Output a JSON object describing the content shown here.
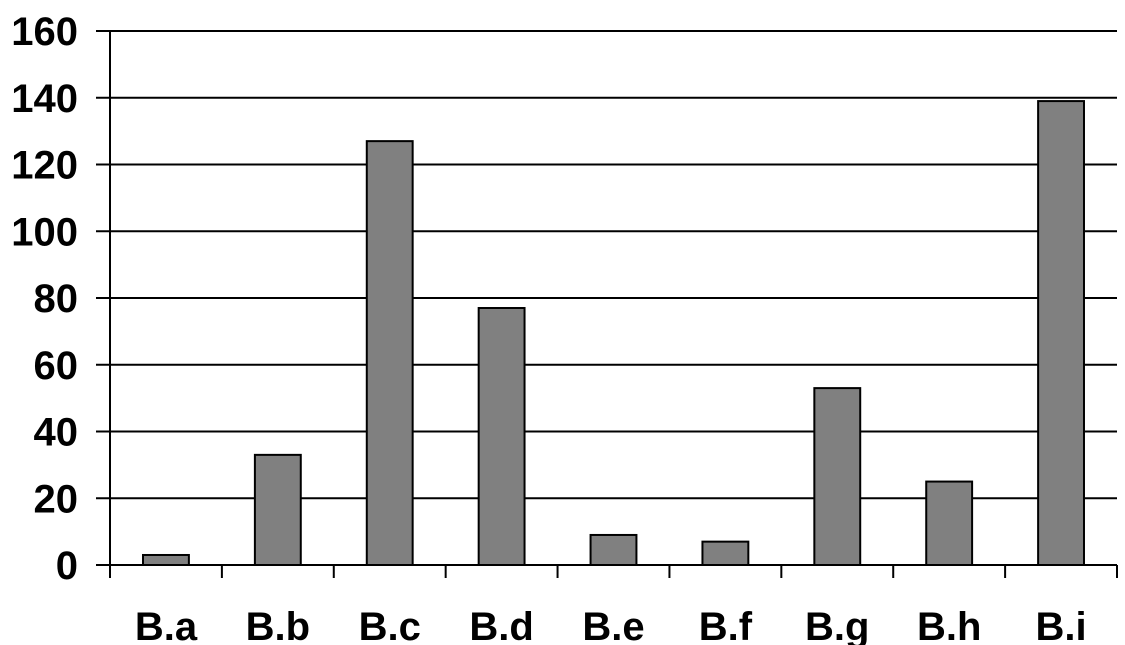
{
  "chart_data": {
    "type": "bar",
    "title": "",
    "xlabel": "",
    "ylabel": "",
    "categories": [
      "B.a",
      "B.b",
      "B.c",
      "B.d",
      "B.e",
      "B.f",
      "B.g",
      "B.h",
      "B.i"
    ],
    "values": [
      3,
      33,
      127,
      77,
      9,
      7,
      53,
      25,
      139
    ],
    "ylim": [
      0,
      160
    ],
    "yticks": [
      0,
      20,
      40,
      60,
      80,
      100,
      120,
      140,
      160
    ],
    "grid": true,
    "legend": "none",
    "colors": {
      "bar": "#808080",
      "grid": "#000000",
      "top_grid": "#808080"
    }
  }
}
